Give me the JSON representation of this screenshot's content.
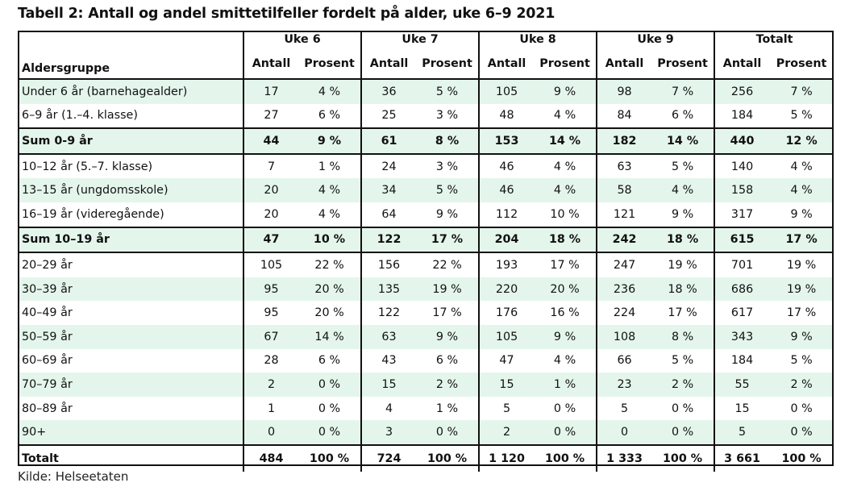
{
  "title": "Tabell 2: Antall og andel smittetilfeller fordelt på alder, uke 6–9 2021",
  "header": {
    "group_label": "Aldersgruppe",
    "weeks": [
      "Uke 6",
      "Uke 7",
      "Uke 8",
      "Uke 9",
      "Totalt"
    ],
    "sub_antall": "Antall",
    "sub_prosent": "Prosent"
  },
  "rows": [
    {
      "label": "Under 6 år (barnehagealder)",
      "v": [
        "17",
        "4 %",
        "36",
        "5 %",
        "105",
        "9 %",
        "98",
        "7 %",
        "256",
        "7 %"
      ]
    },
    {
      "label": "6–9 år (1.–4. klasse)",
      "v": [
        "27",
        "6 %",
        "25",
        "3 %",
        "48",
        "4 %",
        "84",
        "6 %",
        "184",
        "5 %"
      ]
    },
    {
      "label": "Sum 0-9 år",
      "v": [
        "44",
        "9 %",
        "61",
        "8 %",
        "153",
        "14 %",
        "182",
        "14 %",
        "440",
        "12 %"
      ]
    },
    {
      "label": "10–12 år (5.–7. klasse)",
      "v": [
        "7",
        "1 %",
        "24",
        "3 %",
        "46",
        "4 %",
        "63",
        "5 %",
        "140",
        "4 %"
      ]
    },
    {
      "label": "13–15 år (ungdomsskole)",
      "v": [
        "20",
        "4 %",
        "34",
        "5 %",
        "46",
        "4 %",
        "58",
        "4 %",
        "158",
        "4 %"
      ]
    },
    {
      "label": "16–19 år (videregående)",
      "v": [
        "20",
        "4 %",
        "64",
        "9 %",
        "112",
        "10 %",
        "121",
        "9 %",
        "317",
        "9 %"
      ]
    },
    {
      "label": "Sum 10–19 år",
      "v": [
        "47",
        "10 %",
        "122",
        "17 %",
        "204",
        "18 %",
        "242",
        "18 %",
        "615",
        "17 %"
      ]
    },
    {
      "label": "20–29 år",
      "v": [
        "105",
        "22 %",
        "156",
        "22 %",
        "193",
        "17 %",
        "247",
        "19 %",
        "701",
        "19 %"
      ]
    },
    {
      "label": "30–39 år",
      "v": [
        "95",
        "20 %",
        "135",
        "19 %",
        "220",
        "20 %",
        "236",
        "18 %",
        "686",
        "19 %"
      ]
    },
    {
      "label": "40–49 år",
      "v": [
        "95",
        "20 %",
        "122",
        "17 %",
        "176",
        "16 %",
        "224",
        "17 %",
        "617",
        "17 %"
      ]
    },
    {
      "label": "50–59 år",
      "v": [
        "67",
        "14 %",
        "63",
        "9 %",
        "105",
        "9 %",
        "108",
        "8 %",
        "343",
        "9 %"
      ]
    },
    {
      "label": "60–69 år",
      "v": [
        "28",
        "6 %",
        "43",
        "6 %",
        "47",
        "4 %",
        "66",
        "5 %",
        "184",
        "5 %"
      ]
    },
    {
      "label": "70–79 år",
      "v": [
        "2",
        "0 %",
        "15",
        "2 %",
        "15",
        "1 %",
        "23",
        "2 %",
        "55",
        "2 %"
      ]
    },
    {
      "label": "80–89 år",
      "v": [
        "1",
        "0 %",
        "4",
        "1 %",
        "5",
        "0 %",
        "5",
        "0 %",
        "15",
        "0 %"
      ]
    },
    {
      "label": "90+",
      "v": [
        "0",
        "0 %",
        "3",
        "0 %",
        "2",
        "0 %",
        "0",
        "0 %",
        "5",
        "0 %"
      ]
    },
    {
      "label": "Totalt",
      "v": [
        "484",
        "100 %",
        "724",
        "100 %",
        "1 120",
        "100 %",
        "1 333",
        "100 %",
        "3 661",
        "100 %"
      ]
    }
  ],
  "source": "Kilde: Helseetaten"
}
